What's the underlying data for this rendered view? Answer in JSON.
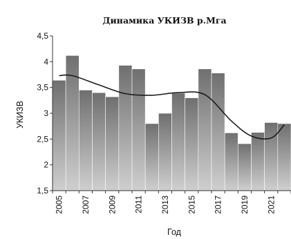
{
  "chart_data": {
    "type": "bar",
    "title": "Динамика УКИЗВ р.Мга",
    "xlabel": "Год",
    "ylabel": "УКИЗВ",
    "ylim": [
      1.5,
      4.5
    ],
    "yticks": [
      "1,5",
      "2",
      "2,5",
      "3",
      "3,5",
      "4",
      "4,5"
    ],
    "xtick_labels": [
      "2005",
      "2007",
      "2009",
      "2011",
      "2013",
      "2015",
      "2017",
      "2019",
      "2021"
    ],
    "categories": [
      2005,
      2006,
      2007,
      2008,
      2009,
      2010,
      2011,
      2012,
      2013,
      2014,
      2015,
      2016,
      2017,
      2018,
      2019,
      2020,
      2021,
      2022
    ],
    "values": [
      3.64,
      4.12,
      3.45,
      3.4,
      3.32,
      3.93,
      3.86,
      2.8,
      3.0,
      3.39,
      3.3,
      3.86,
      3.78,
      2.62,
      2.41,
      2.63,
      2.82,
      2.8
    ],
    "trend": {
      "type": "smoothed-trendline",
      "x": [
        2005,
        2006,
        2008,
        2010,
        2012,
        2014,
        2016,
        2018,
        2019.5,
        2021,
        2022
      ],
      "y": [
        3.73,
        3.73,
        3.55,
        3.38,
        3.35,
        3.4,
        3.36,
        2.85,
        2.56,
        2.52,
        2.78
      ]
    },
    "legend": "none",
    "grid": false,
    "colors": {
      "bar_top": "#6f6f6f",
      "bar_bottom": "#cfcfcf",
      "bar_edge": "#ffffff",
      "trend": "#1a1a1a",
      "axis": "#333333"
    }
  }
}
